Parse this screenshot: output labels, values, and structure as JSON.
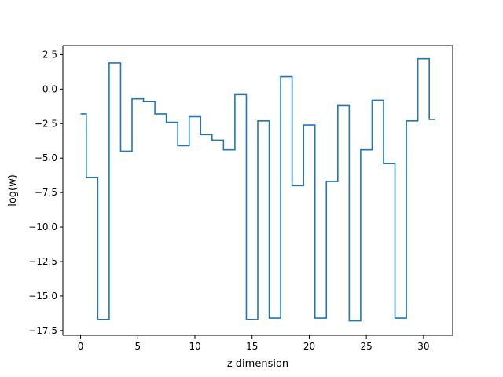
{
  "chart_data": {
    "type": "line",
    "drawstyle": "steps-mid",
    "title": "",
    "xlabel": "z dimension",
    "ylabel": "log(w)",
    "xlim": [
      -1.55,
      32.55
    ],
    "ylim": [
      -17.85,
      3.15
    ],
    "xticks": [
      0,
      5,
      10,
      15,
      20,
      25,
      30
    ],
    "xtick_labels": [
      "0",
      "5",
      "10",
      "15",
      "20",
      "25",
      "30"
    ],
    "yticks": [
      2.5,
      0.0,
      -2.5,
      -5.0,
      -7.5,
      -10.0,
      -12.5,
      -15.0,
      -17.5
    ],
    "ytick_labels": [
      "2.5",
      "0.0",
      "−2.5",
      "−5.0",
      "−7.5",
      "−10.0",
      "−12.5",
      "−15.0",
      "−17.5"
    ],
    "grid": false,
    "legend": "none",
    "series": [
      {
        "color": "#1f77b4",
        "x": [
          0,
          1,
          2,
          3,
          4,
          5,
          6,
          7,
          8,
          9,
          10,
          11,
          12,
          13,
          14,
          15,
          16,
          17,
          18,
          19,
          20,
          21,
          22,
          23,
          24,
          25,
          26,
          27,
          28,
          29,
          30,
          31
        ],
        "y": [
          -1.8,
          -6.4,
          -16.7,
          1.9,
          -4.5,
          -0.7,
          -0.9,
          -1.8,
          -2.4,
          -4.1,
          -2.0,
          -3.3,
          -3.7,
          -4.4,
          -0.4,
          -16.7,
          -2.3,
          -16.6,
          0.9,
          -7.0,
          -2.6,
          -16.6,
          -6.7,
          -1.2,
          -16.8,
          -4.4,
          -0.8,
          -5.4,
          -16.6,
          -2.3,
          2.2,
          -2.2
        ]
      }
    ]
  }
}
